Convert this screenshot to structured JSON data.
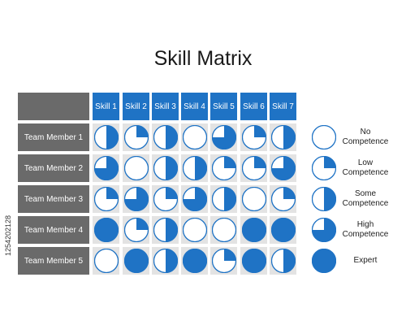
{
  "title": "Skill Matrix",
  "skills": [
    "Skill 1",
    "Skill 2",
    "Skill 3",
    "Skill 4",
    "Skill 5",
    "Skill 6",
    "Skill 7"
  ],
  "members": [
    {
      "name": "Team Member 1",
      "levels": [
        2,
        1,
        2,
        0,
        3,
        1,
        2
      ]
    },
    {
      "name": "Team Member 2",
      "levels": [
        3,
        0,
        2,
        2,
        1,
        1,
        3
      ]
    },
    {
      "name": "Team Member 3",
      "levels": [
        1,
        3,
        1,
        3,
        2,
        0,
        1
      ]
    },
    {
      "name": "Team Member 4",
      "levels": [
        4,
        1,
        2,
        0,
        0,
        4,
        4
      ]
    },
    {
      "name": "Team Member 5",
      "levels": [
        0,
        4,
        2,
        4,
        1,
        4,
        2
      ]
    }
  ],
  "legend": [
    {
      "level": 0,
      "label": "No Competence"
    },
    {
      "level": 1,
      "label": "Low Competence"
    },
    {
      "level": 2,
      "label": "Some Competence"
    },
    {
      "level": 3,
      "label": "High Competence"
    },
    {
      "level": 4,
      "label": "Expert"
    }
  ],
  "side_id": "1254202128",
  "colors": {
    "accent": "#1f73c5",
    "label_bg": "#6a6a6a",
    "cell_bg": "#e3e3e3"
  }
}
